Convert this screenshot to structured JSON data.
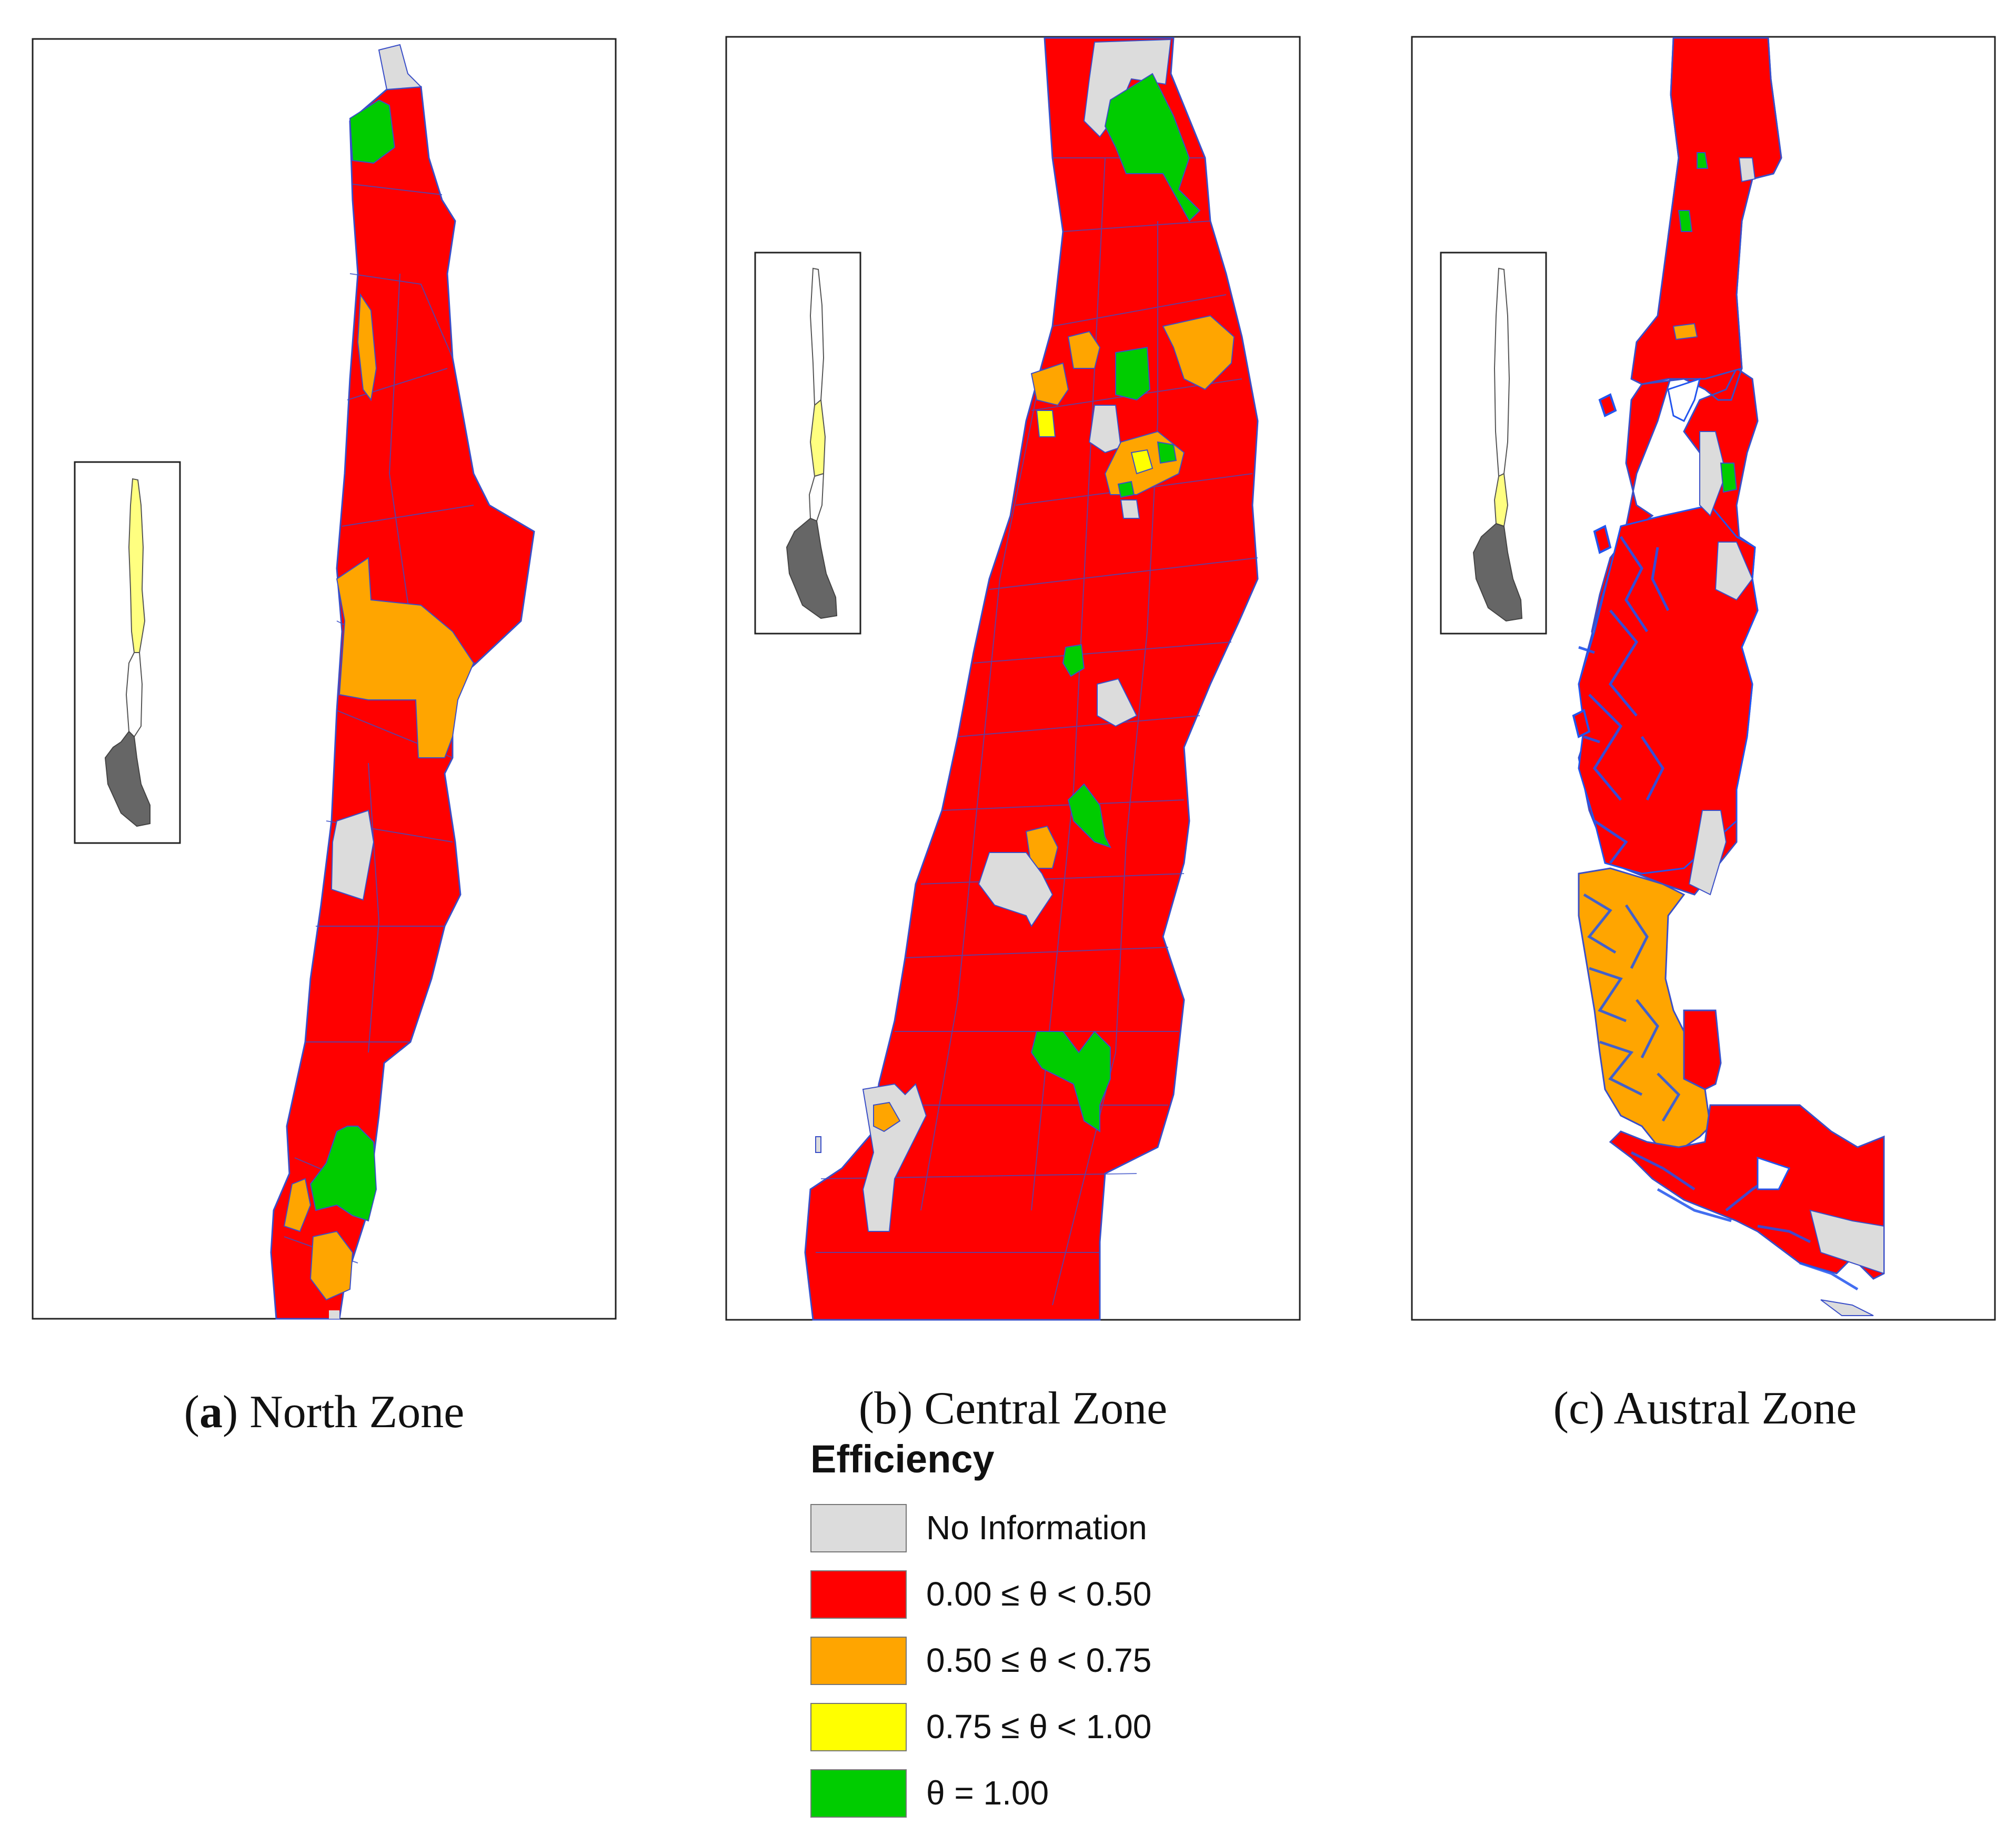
{
  "panels": [
    {
      "id": "a",
      "letter": "a",
      "letter_bold": true,
      "caption": "North Zone"
    },
    {
      "id": "b",
      "letter": "b",
      "letter_bold": false,
      "caption": "Central Zone"
    },
    {
      "id": "c",
      "letter": "c",
      "letter_bold": false,
      "caption": "Austral Zone"
    }
  ],
  "legend": {
    "title": "Efficiency",
    "items": [
      {
        "label": "No Information",
        "color": "#dcdcdc"
      },
      {
        "label": "0.00 ≤ θ < 0.50",
        "color": "#ff0000"
      },
      {
        "label": "0.50 ≤ θ < 0.75",
        "color": "#ffa500"
      },
      {
        "label": "0.75 ≤ θ < 1.00",
        "color": "#ffff00"
      },
      {
        "label": "θ = 1.00",
        "color": "#00cc00"
      }
    ]
  },
  "colors": {
    "no_info": "#dcdcdc",
    "low": "#ff0000",
    "mid": "#ffa500",
    "high": "#ffff00",
    "full": "#00cc00",
    "boundary": "#3a4fc8",
    "inset_highlight": "#ffff80",
    "water": "#2255ee"
  }
}
